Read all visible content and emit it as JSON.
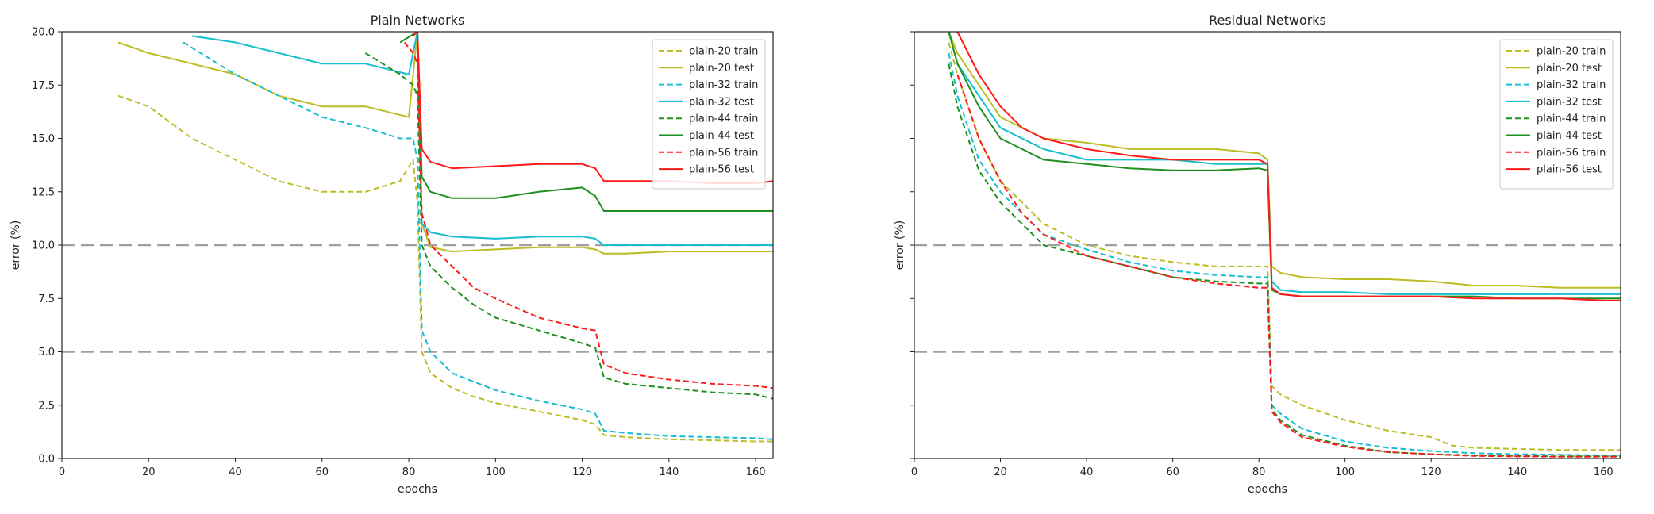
{
  "legend_labels": [
    "plain-20 train",
    "plain-20 test",
    "plain-32 train",
    "plain-32 test",
    "plain-44 train",
    "plain-44 test",
    "plain-56 train",
    "plain-56 test"
  ],
  "series_colors": {
    "plain-20": "#bcbd22",
    "plain-32": "#17becf",
    "plain-44": "#1f8f1f",
    "plain-56": "#ff1a1a",
    "reference": "#a0a0a0"
  },
  "chart_data": [
    {
      "type": "line",
      "title": "Plain Networks",
      "xlabel": "epochs",
      "ylabel": "error (%)",
      "xlim": [
        0,
        164
      ],
      "ylim": [
        0,
        20
      ],
      "x_ticks": [
        0,
        20,
        40,
        60,
        80,
        100,
        120,
        140,
        160
      ],
      "y_ticks": [
        0.0,
        2.5,
        5.0,
        7.5,
        10.0,
        12.5,
        15.0,
        17.5,
        20.0
      ],
      "x_tick_labels": [
        "0",
        "20",
        "40",
        "60",
        "80",
        "100",
        "120",
        "140",
        "160"
      ],
      "y_tick_labels": [
        "0.0",
        "2.5",
        "5.0",
        "7.5",
        "10.0",
        "12.5",
        "15.0",
        "17.5",
        "20.0"
      ],
      "reference_lines": [
        5,
        10
      ],
      "legend_position": "top-right",
      "series": [
        {
          "name": "plain-20 train",
          "color_key": "plain-20",
          "style": "dashed",
          "x": [
            13,
            20,
            30,
            40,
            50,
            60,
            70,
            78,
            81,
            82,
            83,
            85,
            90,
            95,
            100,
            110,
            120,
            123,
            125,
            130,
            140,
            150,
            160,
            164
          ],
          "y": [
            17.0,
            16.5,
            15.0,
            14.0,
            13.0,
            12.5,
            12.5,
            13.0,
            14.0,
            12.0,
            5.0,
            4.0,
            3.3,
            2.9,
            2.6,
            2.2,
            1.8,
            1.6,
            1.1,
            1.0,
            0.9,
            0.85,
            0.8,
            0.8
          ]
        },
        {
          "name": "plain-20 test",
          "color_key": "plain-20",
          "style": "solid",
          "x": [
            13,
            20,
            30,
            40,
            50,
            60,
            70,
            80,
            82,
            83,
            85,
            90,
            100,
            110,
            120,
            123,
            125,
            130,
            140,
            150,
            160,
            164
          ],
          "y": [
            19.5,
            19.0,
            18.5,
            18.0,
            17.0,
            16.5,
            16.5,
            16.0,
            20.0,
            11.0,
            9.9,
            9.7,
            9.8,
            9.9,
            9.9,
            9.8,
            9.6,
            9.6,
            9.7,
            9.7,
            9.7,
            9.7
          ]
        },
        {
          "name": "plain-32 train",
          "color_key": "plain-32",
          "style": "dashed",
          "x": [
            28,
            40,
            50,
            60,
            70,
            78,
            81,
            82,
            83,
            85,
            90,
            95,
            100,
            110,
            120,
            123,
            125,
            130,
            140,
            150,
            160,
            164
          ],
          "y": [
            19.5,
            18.0,
            17.0,
            16.0,
            15.5,
            15.0,
            15.0,
            14.0,
            6.0,
            5.0,
            4.0,
            3.6,
            3.2,
            2.7,
            2.3,
            2.1,
            1.3,
            1.2,
            1.05,
            1.0,
            0.95,
            0.9
          ]
        },
        {
          "name": "plain-32 test",
          "color_key": "plain-32",
          "style": "solid",
          "x": [
            30,
            40,
            50,
            60,
            70,
            80,
            82,
            83,
            85,
            90,
            100,
            110,
            120,
            123,
            125,
            130,
            140,
            150,
            160,
            164
          ],
          "y": [
            19.8,
            19.5,
            19.0,
            18.5,
            18.5,
            18.0,
            20.0,
            11.0,
            10.6,
            10.4,
            10.3,
            10.4,
            10.4,
            10.3,
            10.0,
            10.0,
            10.0,
            10.0,
            10.0,
            10.0
          ]
        },
        {
          "name": "plain-44 train",
          "color_key": "plain-44",
          "style": "dashed",
          "x": [
            70,
            78,
            81,
            82,
            83,
            85,
            90,
            95,
            100,
            110,
            120,
            123,
            125,
            130,
            140,
            150,
            160,
            164
          ],
          "y": [
            19.0,
            18.0,
            17.5,
            17.0,
            10.0,
            9.0,
            8.0,
            7.2,
            6.6,
            6.0,
            5.4,
            5.2,
            3.8,
            3.5,
            3.3,
            3.1,
            3.0,
            2.8
          ]
        },
        {
          "name": "plain-44 test",
          "color_key": "plain-44",
          "style": "solid",
          "x": [
            78,
            82,
            83,
            85,
            90,
            100,
            110,
            120,
            123,
            125,
            130,
            140,
            150,
            160,
            164
          ],
          "y": [
            19.5,
            20.0,
            13.2,
            12.5,
            12.2,
            12.2,
            12.5,
            12.7,
            12.3,
            11.6,
            11.6,
            11.6,
            11.6,
            11.6,
            11.6
          ]
        },
        {
          "name": "plain-56 train",
          "color_key": "plain-56",
          "style": "dashed",
          "x": [
            79,
            81,
            82,
            83,
            85,
            90,
            95,
            100,
            110,
            120,
            123,
            125,
            130,
            140,
            150,
            160,
            164
          ],
          "y": [
            19.5,
            19.0,
            18.5,
            11.5,
            10.0,
            9.0,
            8.0,
            7.5,
            6.6,
            6.1,
            6.0,
            4.4,
            4.0,
            3.7,
            3.5,
            3.4,
            3.3
          ]
        },
        {
          "name": "plain-56 test",
          "color_key": "plain-56",
          "style": "solid",
          "x": [
            81,
            82,
            83,
            85,
            90,
            100,
            110,
            120,
            123,
            125,
            130,
            140,
            150,
            160,
            164
          ],
          "y": [
            19.8,
            20.0,
            14.5,
            13.9,
            13.6,
            13.7,
            13.8,
            13.8,
            13.6,
            13.0,
            13.0,
            13.0,
            12.9,
            12.9,
            13.0
          ]
        }
      ]
    },
    {
      "type": "line",
      "title": "Residual Networks",
      "xlabel": "epochs",
      "ylabel": "error (%)",
      "xlim": [
        0,
        164
      ],
      "ylim": [
        0,
        20
      ],
      "x_ticks": [
        0,
        20,
        40,
        60,
        80,
        100,
        120,
        140,
        160
      ],
      "y_ticks": [
        0.0,
        2.5,
        5.0,
        7.5,
        10.0,
        12.5,
        15.0,
        17.5,
        20.0
      ],
      "x_tick_labels": [
        "0",
        "20",
        "40",
        "60",
        "80",
        "100",
        "120",
        "140",
        "160"
      ],
      "reference_lines": [
        5,
        10
      ],
      "legend_position": "top-right",
      "series": [
        {
          "name": "plain-20 train",
          "color_key": "plain-20",
          "style": "dashed",
          "x": [
            8,
            10,
            15,
            20,
            25,
            30,
            40,
            50,
            60,
            70,
            80,
            82,
            83,
            85,
            90,
            100,
            110,
            120,
            125,
            130,
            140,
            150,
            160,
            164
          ],
          "y": [
            19.5,
            18.0,
            15.0,
            13.0,
            12.0,
            11.0,
            10.0,
            9.5,
            9.2,
            9.0,
            9.0,
            9.0,
            3.4,
            3.0,
            2.5,
            1.8,
            1.3,
            1.0,
            0.6,
            0.5,
            0.45,
            0.4,
            0.4,
            0.4
          ]
        },
        {
          "name": "plain-20 test",
          "color_key": "plain-20",
          "style": "solid",
          "x": [
            8,
            10,
            15,
            20,
            25,
            30,
            40,
            50,
            60,
            70,
            80,
            82,
            83,
            85,
            90,
            100,
            110,
            120,
            125,
            130,
            140,
            150,
            160,
            164
          ],
          "y": [
            20.0,
            19.0,
            17.5,
            16.0,
            15.5,
            15.0,
            14.8,
            14.5,
            14.5,
            14.5,
            14.3,
            14.0,
            9.0,
            8.7,
            8.5,
            8.4,
            8.4,
            8.3,
            8.2,
            8.1,
            8.1,
            8.0,
            8.0,
            8.0
          ]
        },
        {
          "name": "plain-32 train",
          "color_key": "plain-32",
          "style": "dashed",
          "x": [
            8,
            10,
            15,
            20,
            25,
            30,
            40,
            50,
            60,
            70,
            80,
            82,
            83,
            85,
            90,
            100,
            110,
            120,
            130,
            140,
            150,
            160,
            164
          ],
          "y": [
            19.0,
            17.0,
            14.0,
            12.5,
            11.5,
            10.5,
            9.8,
            9.2,
            8.8,
            8.6,
            8.5,
            8.5,
            2.5,
            2.1,
            1.4,
            0.8,
            0.5,
            0.35,
            0.25,
            0.2,
            0.18,
            0.15,
            0.15
          ]
        },
        {
          "name": "plain-32 test",
          "color_key": "plain-32",
          "style": "solid",
          "x": [
            8,
            10,
            15,
            20,
            25,
            30,
            40,
            50,
            60,
            70,
            80,
            82,
            83,
            85,
            90,
            100,
            110,
            120,
            130,
            140,
            150,
            160,
            164
          ],
          "y": [
            20.0,
            18.5,
            17.0,
            15.5,
            15.0,
            14.5,
            14.0,
            14.0,
            14.0,
            13.8,
            13.8,
            13.8,
            8.3,
            7.9,
            7.8,
            7.8,
            7.7,
            7.7,
            7.7,
            7.7,
            7.7,
            7.7,
            7.7
          ]
        },
        {
          "name": "plain-44 train",
          "color_key": "plain-44",
          "style": "dashed",
          "x": [
            8,
            10,
            15,
            20,
            25,
            30,
            40,
            50,
            60,
            70,
            80,
            82,
            83,
            85,
            90,
            100,
            110,
            120,
            130,
            140,
            150,
            160,
            164
          ],
          "y": [
            18.5,
            16.5,
            13.5,
            12.0,
            11.0,
            10.0,
            9.5,
            9.0,
            8.5,
            8.3,
            8.2,
            8.2,
            2.3,
            1.8,
            1.1,
            0.6,
            0.3,
            0.2,
            0.15,
            0.12,
            0.1,
            0.1,
            0.1
          ]
        },
        {
          "name": "plain-44 test",
          "color_key": "plain-44",
          "style": "solid",
          "x": [
            8,
            10,
            15,
            20,
            25,
            30,
            40,
            50,
            60,
            70,
            80,
            82,
            83,
            85,
            90,
            100,
            110,
            120,
            130,
            140,
            150,
            160,
            164
          ],
          "y": [
            20.0,
            18.5,
            16.5,
            15.0,
            14.5,
            14.0,
            13.8,
            13.6,
            13.5,
            13.5,
            13.6,
            13.5,
            7.9,
            7.7,
            7.6,
            7.6,
            7.6,
            7.6,
            7.6,
            7.5,
            7.5,
            7.5,
            7.5
          ]
        },
        {
          "name": "plain-56 train",
          "color_key": "plain-56",
          "style": "dashed",
          "x": [
            10,
            15,
            20,
            25,
            30,
            40,
            50,
            60,
            70,
            80,
            82,
            83,
            85,
            90,
            100,
            110,
            120,
            130,
            140,
            150,
            160,
            164
          ],
          "y": [
            18.0,
            15.0,
            13.0,
            11.5,
            10.5,
            9.5,
            9.0,
            8.5,
            8.2,
            8.0,
            8.0,
            2.2,
            1.7,
            1.0,
            0.55,
            0.3,
            0.2,
            0.12,
            0.1,
            0.08,
            0.08,
            0.08
          ]
        },
        {
          "name": "plain-56 test",
          "color_key": "plain-56",
          "style": "solid",
          "x": [
            10,
            15,
            20,
            25,
            30,
            40,
            50,
            60,
            70,
            80,
            82,
            83,
            85,
            90,
            100,
            110,
            120,
            130,
            140,
            150,
            160,
            164
          ],
          "y": [
            20.0,
            18.0,
            16.5,
            15.5,
            15.0,
            14.5,
            14.2,
            14.0,
            14.0,
            14.0,
            13.8,
            8.0,
            7.7,
            7.6,
            7.6,
            7.6,
            7.6,
            7.5,
            7.5,
            7.5,
            7.4,
            7.4
          ]
        }
      ]
    }
  ]
}
